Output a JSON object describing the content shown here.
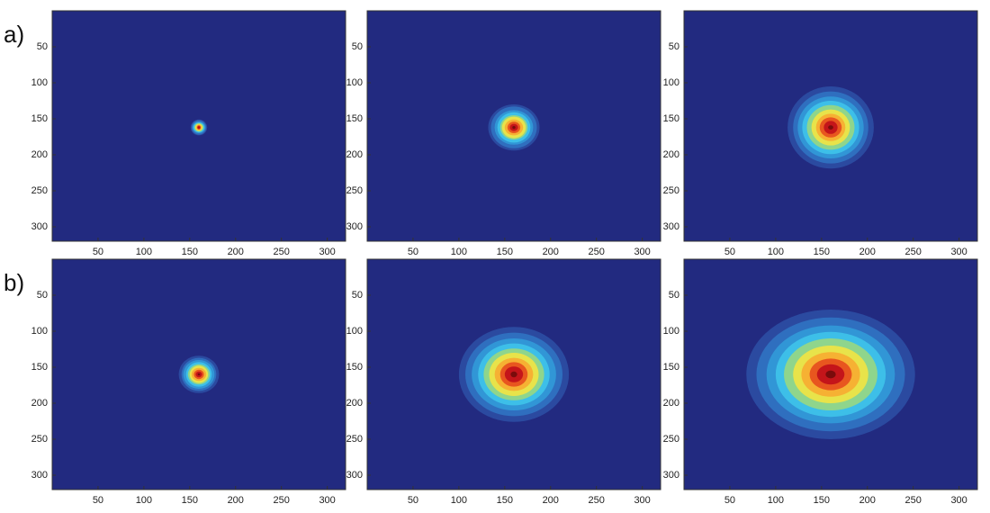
{
  "row_labels": [
    "a)",
    "b)"
  ],
  "chart_data": [
    {
      "type": "heatmap",
      "xlim": [
        0,
        320
      ],
      "ylim": [
        320,
        0
      ],
      "xticks": [
        50,
        100,
        150,
        200,
        250,
        300
      ],
      "yticks": [
        50,
        100,
        150,
        200,
        250,
        300
      ],
      "background": "#222a80",
      "center": [
        160,
        162
      ],
      "rx": [
        9,
        8,
        7,
        6,
        5,
        4,
        3,
        2,
        1.5,
        0.5
      ],
      "ry": [
        11,
        10,
        8,
        7,
        6,
        5,
        4,
        3,
        2,
        0.6
      ],
      "colors": [
        "#2b4aa0",
        "#2f6fbf",
        "#3196d6",
        "#3dbfe8",
        "#8fd58c",
        "#e8e34a",
        "#f6b133",
        "#e8561f",
        "#c4151a",
        "#7a0c0c"
      ]
    },
    {
      "type": "heatmap",
      "xlim": [
        0,
        320
      ],
      "ylim": [
        320,
        0
      ],
      "xticks": [
        50,
        100,
        150,
        200,
        250,
        300
      ],
      "yticks": [
        50,
        100,
        150,
        200,
        250,
        300
      ],
      "background": "#222a80",
      "center": [
        160,
        162
      ],
      "rx": [
        28,
        25,
        21,
        18,
        15,
        13,
        10,
        7,
        4.5,
        1.7
      ],
      "ry": [
        32,
        29,
        24,
        21,
        17,
        15,
        11,
        8,
        5,
        2
      ],
      "colors": [
        "#2b4aa0",
        "#2f6fbf",
        "#3196d6",
        "#3dbfe8",
        "#8fd58c",
        "#e8e34a",
        "#f6b133",
        "#e8561f",
        "#c4151a",
        "#7a0c0c"
      ]
    },
    {
      "type": "heatmap",
      "xlim": [
        0,
        320
      ],
      "ylim": [
        320,
        0
      ],
      "xticks": [
        50,
        100,
        150,
        200,
        250,
        300
      ],
      "yticks": [
        50,
        100,
        150,
        200,
        250,
        300
      ],
      "background": "#222a80",
      "center": [
        160,
        162
      ],
      "rx": [
        47,
        41,
        36,
        31,
        26,
        21,
        16,
        12,
        7.5,
        2.8
      ],
      "ry": [
        57,
        50,
        43,
        37,
        31,
        25,
        19,
        14,
        9,
        3
      ],
      "colors": [
        "#2b4aa0",
        "#2f6fbf",
        "#3196d6",
        "#3dbfe8",
        "#8fd58c",
        "#e8e34a",
        "#f6b133",
        "#e8561f",
        "#c4151a",
        "#7a0c0c"
      ]
    },
    {
      "type": "heatmap",
      "xlim": [
        0,
        320
      ],
      "ylim": [
        320,
        0
      ],
      "xticks": [
        50,
        100,
        150,
        200,
        250,
        300
      ],
      "yticks": [
        50,
        100,
        150,
        200,
        250,
        300
      ],
      "background": "#222a80",
      "center": [
        160,
        160
      ],
      "rx": [
        22,
        19,
        17,
        14,
        12,
        10,
        8,
        5.5,
        3.5,
        1.3
      ],
      "ry": [
        26,
        23,
        20,
        17,
        14,
        12,
        9,
        6.5,
        4,
        1.5
      ],
      "colors": [
        "#2b4aa0",
        "#2f6fbf",
        "#3196d6",
        "#3dbfe8",
        "#8fd58c",
        "#e8e34a",
        "#f6b133",
        "#e8561f",
        "#c4151a",
        "#7a0c0c"
      ]
    },
    {
      "type": "heatmap",
      "xlim": [
        0,
        320
      ],
      "ylim": [
        320,
        0
      ],
      "xticks": [
        50,
        100,
        150,
        200,
        250,
        300
      ],
      "yticks": [
        50,
        100,
        150,
        200,
        250,
        300
      ],
      "background": "#222a80",
      "center": [
        160,
        160
      ],
      "rx": [
        60,
        53,
        46,
        39,
        33,
        27,
        21,
        15,
        10,
        3.6
      ],
      "ry": [
        66,
        58,
        50,
        43,
        36,
        30,
        23,
        17,
        11,
        4
      ],
      "colors": [
        "#2b4aa0",
        "#2f6fbf",
        "#3196d6",
        "#3dbfe8",
        "#8fd58c",
        "#e8e34a",
        "#f6b133",
        "#e8561f",
        "#c4151a",
        "#7a0c0c"
      ]
    },
    {
      "type": "heatmap",
      "xlim": [
        0,
        320
      ],
      "ylim": [
        320,
        0
      ],
      "xticks": [
        50,
        100,
        150,
        200,
        250,
        300
      ],
      "yticks": [
        50,
        100,
        150,
        200,
        250,
        300
      ],
      "background": "#222a80",
      "center": [
        160,
        160
      ],
      "rx": [
        92,
        81,
        70,
        60,
        51,
        41,
        32,
        23,
        15,
        5.5
      ],
      "ry": [
        90,
        79,
        68,
        59,
        50,
        40,
        31,
        22,
        14,
        5.4
      ],
      "colors": [
        "#2b4aa0",
        "#2f6fbf",
        "#3196d6",
        "#3dbfe8",
        "#8fd58c",
        "#e8e34a",
        "#f6b133",
        "#e8561f",
        "#c4151a",
        "#7a0c0c"
      ]
    }
  ]
}
